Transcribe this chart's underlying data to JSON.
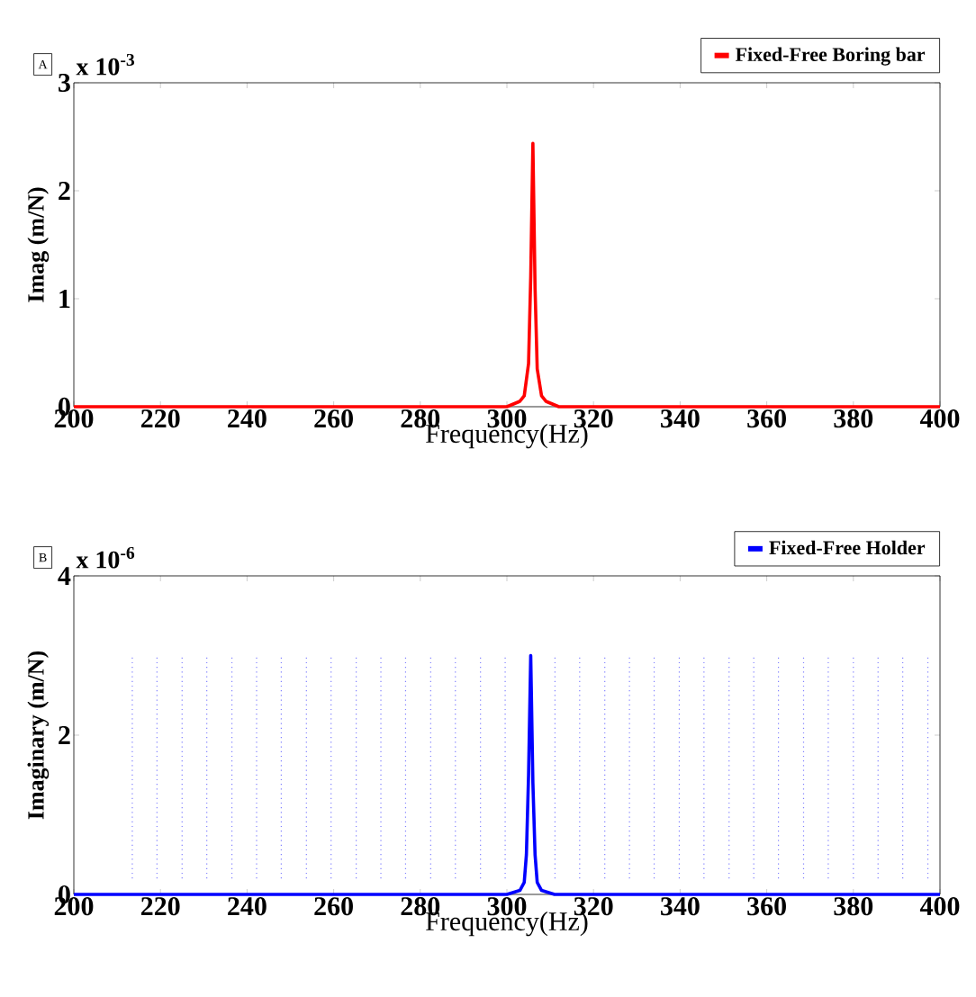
{
  "chart_data": [
    {
      "type": "line",
      "xlabel": "Frequency(Hz)",
      "ylabel": "Imag (m/N)",
      "annotations": [
        "A",
        "x 10$^{-3}$"
      ],
      "xlim": [
        200,
        400
      ],
      "xticks": [
        200,
        220,
        240,
        260,
        280,
        300,
        320,
        340,
        360,
        380,
        400
      ],
      "ylim": [
        0,
        3
      ],
      "yticks": [
        0,
        1,
        2,
        3
      ],
      "legend": "top right",
      "grid": false,
      "series": [
        {
          "name": "Fixed-Free Boring bar",
          "color": "#ff0000",
          "line_style": "solid",
          "x": [
            200,
            300,
            303,
            304,
            305,
            305.5,
            306,
            306.5,
            307,
            308,
            309,
            312,
            400
          ],
          "values": [
            0,
            0,
            0.05,
            0.1,
            0.4,
            1.2,
            2.44,
            1.1,
            0.35,
            0.1,
            0.05,
            0,
            0
          ]
        }
      ]
    },
    {
      "type": "line",
      "xlabel": "Frequency(Hz)",
      "ylabel": "Imaginary (m/N)",
      "annotations": [
        "B",
        "x 10$^{-6}$"
      ],
      "xlim": [
        200,
        400
      ],
      "xticks": [
        200,
        220,
        240,
        260,
        280,
        300,
        320,
        340,
        360,
        380,
        400
      ],
      "ylim": [
        0,
        4
      ],
      "yticks": [
        0,
        2,
        4
      ],
      "legend": "top right",
      "grid": false,
      "series": [
        {
          "color": "#8080ff",
          "line_style": "dotted",
          "x": [
            213.5,
            213.5,
            null,
            219.2,
            219.2,
            null,
            225.0,
            225.0,
            null,
            230.7,
            230.7,
            null,
            236.5,
            236.5,
            null,
            242.2,
            242.2,
            null,
            247.9,
            247.9,
            null,
            253.7,
            253.7,
            null,
            259.4,
            259.4,
            null,
            265.2,
            265.2,
            null,
            270.9,
            270.9,
            null,
            276.6,
            276.6,
            null,
            282.4,
            282.4,
            null,
            288.1,
            288.1,
            null,
            293.9,
            293.9,
            null,
            299.6,
            299.6,
            null,
            311.1,
            311.1,
            null,
            316.8,
            316.8,
            null,
            322.6,
            322.6,
            null,
            328.3,
            328.3,
            null,
            334.0,
            334.0,
            null,
            339.8,
            339.8,
            null,
            345.5,
            345.5,
            null,
            351.3,
            351.3,
            null,
            357.0,
            357.0,
            null,
            362.7,
            362.7,
            null,
            368.5,
            368.5,
            null,
            374.2,
            374.2,
            null,
            380.0,
            380.0,
            null,
            385.7,
            385.7,
            null,
            391.4,
            391.4,
            null,
            397.2,
            397.2
          ],
          "values": [
            0.2,
            3,
            null,
            0.2,
            3,
            null,
            0.2,
            3,
            null,
            0.2,
            3,
            null,
            0.2,
            3,
            null,
            0.2,
            3,
            null,
            0.2,
            3,
            null,
            0.2,
            3,
            null,
            0.2,
            3,
            null,
            0.2,
            3,
            null,
            0.2,
            3,
            null,
            0.2,
            3,
            null,
            0.2,
            3,
            null,
            0.2,
            3,
            null,
            0.2,
            3,
            null,
            0.2,
            3,
            null,
            0.2,
            3,
            null,
            0.2,
            3,
            null,
            0.2,
            3,
            null,
            0.2,
            3,
            null,
            0.2,
            3,
            null,
            0.2,
            3,
            null,
            0.2,
            3,
            null,
            0.2,
            3,
            null,
            0.2,
            3,
            null,
            0.2,
            3,
            null,
            0.2,
            3,
            null,
            0.2,
            3,
            null,
            0.2,
            3,
            null,
            0.2,
            3,
            null,
            0.2,
            3,
            null,
            0.2,
            3
          ]
        },
        {
          "name": "Fixed-Free Holder",
          "color": "#0000ff",
          "line_style": "solid",
          "x": [
            200,
            300,
            303,
            304,
            304.5,
            305,
            305.5,
            306,
            306.5,
            307,
            308,
            311,
            400
          ],
          "values": [
            0,
            0,
            0.05,
            0.15,
            0.5,
            1.5,
            3,
            1.4,
            0.5,
            0.15,
            0.05,
            0,
            0
          ]
        }
      ]
    }
  ]
}
